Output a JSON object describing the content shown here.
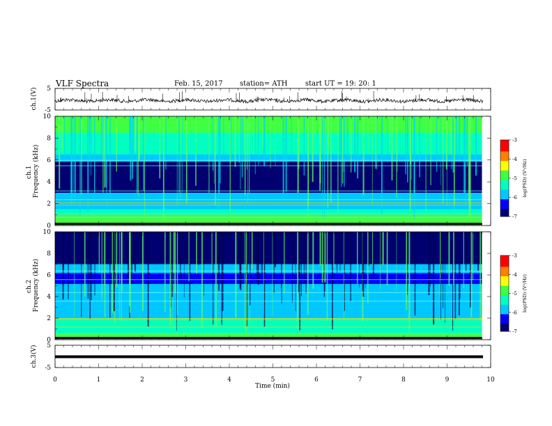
{
  "header": {
    "title": "VLF Spectra",
    "date": "Feb. 15, 2017",
    "station": "station= ATH",
    "start": "start  UT =   19: 20: 1"
  },
  "chart_data": [
    {
      "type": "line",
      "ylabel": "ch.1(V)",
      "ylim": [
        -5,
        5
      ],
      "yticks": [
        "5",
        "-5"
      ],
      "description_series": "noisy trace near 0 V"
    },
    {
      "type": "heatmap",
      "ylabel": "ch.1 Frequency (kHz)",
      "ylim": [
        0,
        10
      ],
      "yticks": [
        "10",
        "8",
        "6",
        "4",
        "2",
        "0"
      ],
      "xlim": [
        0,
        10
      ],
      "colorbar": {
        "label": "log(PSD) (V²/Hz)",
        "range": [
          -7,
          -3
        ],
        "ticks": [
          "-3",
          "-4",
          "-5",
          "-6",
          "-7"
        ]
      }
    },
    {
      "type": "heatmap",
      "ylabel": "ch.2 Frequency (kHz)",
      "ylim": [
        0,
        10
      ],
      "yticks": [
        "10",
        "8",
        "6",
        "4",
        "2",
        "0"
      ],
      "xlim": [
        0,
        10
      ],
      "colorbar": {
        "label": "log(PSD) (V²/Hz)",
        "range": [
          -7,
          -3
        ],
        "ticks": [
          "-3",
          "-4",
          "-5",
          "-6",
          "-7"
        ]
      }
    },
    {
      "type": "line",
      "ylabel": "ch.3(V)",
      "ylim": [
        -5,
        5
      ],
      "yticks": [
        "5",
        "-5"
      ]
    }
  ],
  "xaxis": {
    "label": "Time (min)",
    "ticks": [
      "0",
      "1",
      "2",
      "3",
      "4",
      "5",
      "6",
      "7",
      "8",
      "9",
      "10"
    ],
    "data_end": 9.8
  },
  "colors": {
    "colormap": [
      "#000070",
      "#0000ff",
      "#00c8ff",
      "#00ffc0",
      "#40ff40",
      "#ffff00",
      "#ff8000",
      "#ff0000",
      "#ffffff"
    ]
  }
}
